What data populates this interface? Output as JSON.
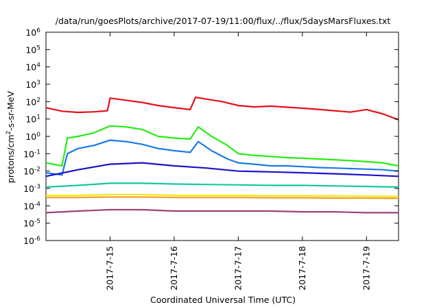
{
  "chart_data": {
    "type": "line",
    "title": "/data/run/goesPlots/archive/2017-07-19/11:00/flux/../flux/5daysMarsFluxes.txt",
    "xlabel": "Coordinated Universal Time (UTC)",
    "ylabel": "protons/cm2-s-sr-MeV",
    "ylabel_base": "protons/cm",
    "ylabel_sup": "2",
    "ylabel_rest": "-s-sr-MeV",
    "yscale": "log",
    "ylim": [
      1e-06,
      1000000.0
    ],
    "xlim": [
      "2017-07-14T00:00",
      "2017-07-19T12:00"
    ],
    "grid": false,
    "x_ticks": [
      {
        "value": "2017-07-15T00:00",
        "label": "2017-7-15"
      },
      {
        "value": "2017-07-16T00:00",
        "label": "2017-7-16"
      },
      {
        "value": "2017-07-17T00:00",
        "label": "2017-7-17"
      },
      {
        "value": "2017-07-18T00:00",
        "label": "2017-7-18"
      },
      {
        "value": "2017-07-19T00:00",
        "label": "2017-7-19"
      }
    ],
    "y_ticks": [
      {
        "exp": -6,
        "base": "10",
        "sup": "-6"
      },
      {
        "exp": -5,
        "base": "10",
        "sup": "-5"
      },
      {
        "exp": -4,
        "base": "10",
        "sup": "-4"
      },
      {
        "exp": -3,
        "base": "10",
        "sup": "-3"
      },
      {
        "exp": -2,
        "base": "10",
        "sup": "-2"
      },
      {
        "exp": -1,
        "base": "10",
        "sup": "-1"
      },
      {
        "exp": 0,
        "base": "10",
        "sup": "0"
      },
      {
        "exp": 1,
        "base": "10",
        "sup": "1"
      },
      {
        "exp": 2,
        "base": "10",
        "sup": "2"
      },
      {
        "exp": 3,
        "base": "10",
        "sup": "3"
      },
      {
        "exp": 4,
        "base": "10",
        "sup": "4"
      },
      {
        "exp": 5,
        "base": "10",
        "sup": "5"
      },
      {
        "exp": 6,
        "base": "10",
        "sup": "6"
      }
    ],
    "series": [
      {
        "color": "#e8101a",
        "x": [
          "2017-07-14T00:00",
          "2017-07-14T06:00",
          "2017-07-14T12:00",
          "2017-07-14T18:00",
          "2017-07-14T23:00",
          "2017-07-15T00:00",
          "2017-07-15T06:00",
          "2017-07-15T12:00",
          "2017-07-15T18:00",
          "2017-07-16T00:00",
          "2017-07-16T06:00",
          "2017-07-16T08:00",
          "2017-07-16T12:00",
          "2017-07-16T18:00",
          "2017-07-17T00:00",
          "2017-07-17T06:00",
          "2017-07-17T12:00",
          "2017-07-17T18:00",
          "2017-07-18T00:00",
          "2017-07-18T06:00",
          "2017-07-18T12:00",
          "2017-07-18T18:00",
          "2017-07-19T00:00",
          "2017-07-19T06:00",
          "2017-07-19T12:00"
        ],
        "values": [
          45,
          28,
          24,
          26,
          30,
          160,
          120,
          90,
          60,
          45,
          35,
          180,
          140,
          100,
          60,
          50,
          55,
          48,
          42,
          36,
          30,
          25,
          35,
          20,
          9
        ]
      },
      {
        "color": "#22ee11",
        "x": [
          "2017-07-14T00:00",
          "2017-07-14T06:00",
          "2017-07-14T08:00",
          "2017-07-14T12:00",
          "2017-07-14T18:00",
          "2017-07-15T00:00",
          "2017-07-15T06:00",
          "2017-07-15T12:00",
          "2017-07-15T18:00",
          "2017-07-16T00:00",
          "2017-07-16T06:00",
          "2017-07-16T09:00",
          "2017-07-16T14:00",
          "2017-07-16T20:00",
          "2017-07-17T00:00",
          "2017-07-17T06:00",
          "2017-07-17T12:00",
          "2017-07-17T18:00",
          "2017-07-18T00:00",
          "2017-07-18T06:00",
          "2017-07-18T12:00",
          "2017-07-18T18:00",
          "2017-07-19T00:00",
          "2017-07-19T06:00",
          "2017-07-19T12:00"
        ],
        "values": [
          0.03,
          0.02,
          0.8,
          1.0,
          1.6,
          4.0,
          3.5,
          2.5,
          1.0,
          0.8,
          0.7,
          3.5,
          1.0,
          0.3,
          0.1,
          0.08,
          0.07,
          0.06,
          0.055,
          0.05,
          0.045,
          0.04,
          0.035,
          0.03,
          0.02
        ]
      },
      {
        "color": "#1a78e8",
        "x": [
          "2017-07-14T00:00",
          "2017-07-14T06:00",
          "2017-07-14T08:00",
          "2017-07-14T12:00",
          "2017-07-14T18:00",
          "2017-07-15T00:00",
          "2017-07-15T06:00",
          "2017-07-15T12:00",
          "2017-07-15T18:00",
          "2017-07-16T00:00",
          "2017-07-16T06:00",
          "2017-07-16T09:00",
          "2017-07-16T14:00",
          "2017-07-16T20:00",
          "2017-07-17T00:00",
          "2017-07-17T06:00",
          "2017-07-17T12:00",
          "2017-07-17T18:00",
          "2017-07-18T00:00",
          "2017-07-18T06:00",
          "2017-07-18T12:00",
          "2017-07-18T18:00",
          "2017-07-19T00:00",
          "2017-07-19T06:00",
          "2017-07-19T12:00"
        ],
        "values": [
          0.008,
          0.006,
          0.1,
          0.2,
          0.3,
          0.6,
          0.5,
          0.35,
          0.2,
          0.15,
          0.12,
          0.5,
          0.15,
          0.05,
          0.03,
          0.025,
          0.02,
          0.02,
          0.018,
          0.016,
          0.015,
          0.014,
          0.013,
          0.012,
          0.01
        ]
      },
      {
        "color": "#1a12c8",
        "x": [
          "2017-07-14T00:00",
          "2017-07-14T12:00",
          "2017-07-15T00:00",
          "2017-07-15T12:00",
          "2017-07-16T00:00",
          "2017-07-16T12:00",
          "2017-07-17T00:00",
          "2017-07-17T12:00",
          "2017-07-18T00:00",
          "2017-07-18T12:00",
          "2017-07-19T00:00",
          "2017-07-19T12:00"
        ],
        "values": [
          0.005,
          0.012,
          0.025,
          0.03,
          0.02,
          0.015,
          0.01,
          0.009,
          0.008,
          0.007,
          0.006,
          0.005
        ]
      },
      {
        "color": "#12c8a0",
        "x": [
          "2017-07-14T00:00",
          "2017-07-14T12:00",
          "2017-07-15T00:00",
          "2017-07-15T12:00",
          "2017-07-16T00:00",
          "2017-07-16T12:00",
          "2017-07-17T00:00",
          "2017-07-17T12:00",
          "2017-07-18T00:00",
          "2017-07-18T12:00",
          "2017-07-19T00:00",
          "2017-07-19T12:00"
        ],
        "values": [
          0.0012,
          0.0015,
          0.002,
          0.002,
          0.0018,
          0.0017,
          0.0016,
          0.0015,
          0.0015,
          0.0014,
          0.0013,
          0.0012
        ]
      },
      {
        "color": "#f0e818",
        "x": [
          "2017-07-14T00:00",
          "2017-07-14T12:00",
          "2017-07-15T00:00",
          "2017-07-15T12:00",
          "2017-07-16T00:00",
          "2017-07-16T12:00",
          "2017-07-17T00:00",
          "2017-07-17T12:00",
          "2017-07-18T00:00",
          "2017-07-18T12:00",
          "2017-07-19T00:00",
          "2017-07-19T12:00"
        ],
        "values": [
          0.0004,
          0.0004,
          0.00045,
          0.00045,
          0.0004,
          0.0004,
          0.0004,
          0.00038,
          0.00038,
          0.00037,
          0.00036,
          0.00035
        ]
      },
      {
        "color": "#f2a020",
        "x": [
          "2017-07-14T00:00",
          "2017-07-14T12:00",
          "2017-07-15T00:00",
          "2017-07-15T12:00",
          "2017-07-16T00:00",
          "2017-07-16T12:00",
          "2017-07-17T00:00",
          "2017-07-17T12:00",
          "2017-07-18T00:00",
          "2017-07-18T12:00",
          "2017-07-19T00:00",
          "2017-07-19T12:00"
        ],
        "values": [
          0.0003,
          0.0003,
          0.00032,
          0.00032,
          0.0003,
          0.0003,
          0.0003,
          0.00029,
          0.00029,
          0.00028,
          0.00028,
          0.00027
        ]
      },
      {
        "color": "#a04070",
        "x": [
          "2017-07-14T00:00",
          "2017-07-14T12:00",
          "2017-07-15T00:00",
          "2017-07-15T12:00",
          "2017-07-16T00:00",
          "2017-07-16T12:00",
          "2017-07-17T00:00",
          "2017-07-17T12:00",
          "2017-07-18T00:00",
          "2017-07-18T12:00",
          "2017-07-19T00:00",
          "2017-07-19T12:00"
        ],
        "values": [
          4e-05,
          5e-05,
          6e-05,
          6e-05,
          5e-05,
          5e-05,
          5e-05,
          5e-05,
          4.5e-05,
          4.5e-05,
          4e-05,
          4e-05
        ]
      }
    ]
  }
}
